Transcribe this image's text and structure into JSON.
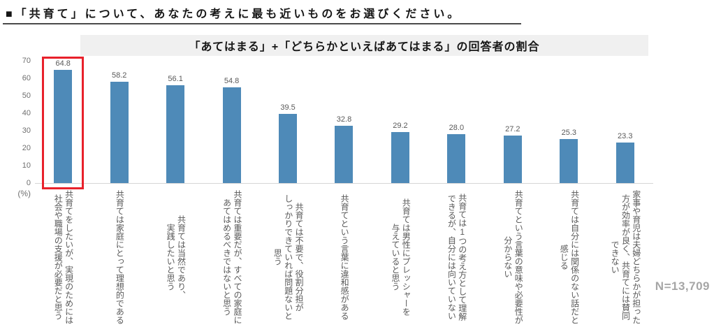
{
  "heading": "■「共育て」について、あなたの考えに最も近いものをお選びください。",
  "note": "N=13,709",
  "axis": {
    "unit_label": "(%)",
    "ticks": [
      "70",
      "60",
      "50",
      "40",
      "30",
      "20",
      "10",
      "0"
    ]
  },
  "colors": {
    "bar": "#4e8ab8",
    "highlight_box": "#e8212b",
    "band_background": "#f0f0f0",
    "note_gray": "#a6a6a6"
  },
  "chart_data": {
    "type": "bar",
    "title": "「あてはまる」+「どちらかといえばあてはまる」の回答者の割合",
    "xlabel": "",
    "ylabel": "(%)",
    "ylim": [
      0,
      70
    ],
    "grid": false,
    "legend": false,
    "highlight_index": 0,
    "n_label": "N=13,709",
    "categories": [
      "共育てをしたいが、実現のためには\n社会や職場の支援が必要だと思う",
      "共育ては家庭にとって理想的である",
      "共育ては当然であり、\n実践したいと思う",
      "共育ては重要だが、すべての家庭に\nあてはめるべきではないと思う",
      "共育ては不要で、役割分担が\nしっかりできていれば問題ないと\n思う",
      "共育てという言葉に違和感がある",
      "共育ては男性にプレッシャーを\n与えていると思う",
      "共育ては1つの考え方として理解\nできるが、自分には向いていない",
      "共育てという言葉の意味や必要性が\n分からない",
      "共育ては自分には関係のない話だと\n感じる",
      "家事や育児は夫婦どちらかが担った\n方が効率が良く、共育てには賛同\nできない"
    ],
    "values": [
      64.8,
      58.2,
      56.1,
      54.8,
      39.5,
      32.8,
      29.2,
      28.0,
      27.2,
      25.3,
      23.3
    ],
    "value_labels": [
      "64.8",
      "58.2",
      "56.1",
      "54.8",
      "39.5",
      "32.8",
      "29.2",
      "28.0",
      "27.2",
      "25.3",
      "23.3"
    ]
  }
}
